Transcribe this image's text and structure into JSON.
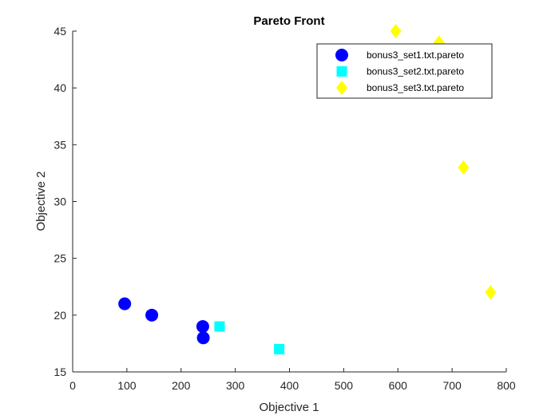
{
  "chart_data": {
    "type": "scatter",
    "title": "Pareto Front",
    "xlabel": "Objective 1",
    "ylabel": "Objective 2",
    "xlim": [
      0,
      800
    ],
    "ylim": [
      15,
      45
    ],
    "xticks": [
      0,
      100,
      200,
      300,
      400,
      500,
      600,
      700,
      800
    ],
    "yticks": [
      15,
      20,
      25,
      30,
      35,
      40,
      45
    ],
    "grid": false,
    "legend_position": "top-right",
    "series": [
      {
        "name": "bonus3_set1.txt.pareto",
        "marker": "circle",
        "color": "#0000FF",
        "points": [
          [
            96,
            21
          ],
          [
            146,
            20
          ],
          [
            240,
            19
          ],
          [
            241,
            18
          ]
        ]
      },
      {
        "name": "bonus3_set2.txt.pareto",
        "marker": "square",
        "color": "#00FFFF",
        "points": [
          [
            271,
            19
          ],
          [
            381,
            17
          ]
        ]
      },
      {
        "name": "bonus3_set3.txt.pareto",
        "marker": "diamond",
        "color": "#FFFF00",
        "points": [
          [
            596,
            45
          ],
          [
            676,
            44
          ],
          [
            721,
            33
          ],
          [
            771,
            22
          ]
        ]
      }
    ]
  }
}
